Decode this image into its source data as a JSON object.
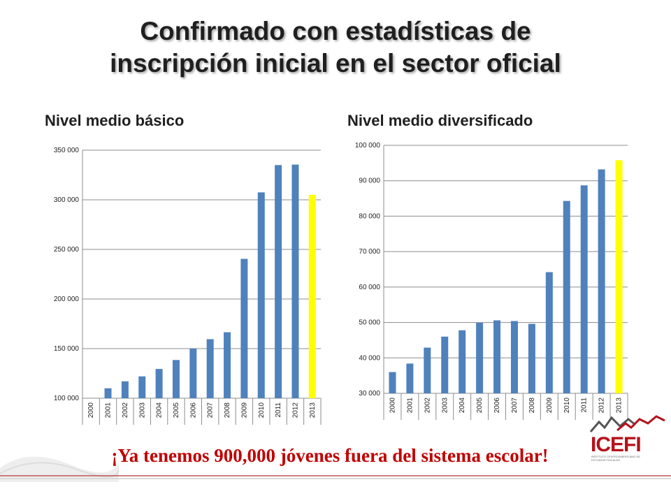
{
  "title": {
    "line1": "Confirmado con estadísticas de",
    "line2": "inscripción inicial en el sector oficial"
  },
  "footer_text": "¡Ya tenemos 900,000 jóvenes fuera del sistema escolar!",
  "logo": {
    "name": "ICEFI",
    "subtitle": "INSTITUTO CENTROAMERICANO DE ESTUDIOS FISCALES"
  },
  "colors": {
    "bar": "#4f81bd",
    "highlight": "#ffff00",
    "footer": "#c00000",
    "logo": "#b5121b"
  },
  "chart_data": [
    {
      "type": "bar",
      "title": "Nivel medio básico",
      "categories": [
        "2000",
        "2001",
        "2002",
        "2003",
        "2004",
        "2005",
        "2006",
        "2007",
        "2008",
        "2009",
        "2010",
        "2011",
        "2012",
        "2013"
      ],
      "values": [
        100000,
        110000,
        117000,
        122000,
        129500,
        138500,
        150000,
        159500,
        166500,
        240500,
        307500,
        335000,
        335500,
        305000
      ],
      "highlight_category": "2013",
      "ylim": [
        100000,
        350000
      ],
      "yticks": [
        100000,
        150000,
        200000,
        250000,
        300000,
        350000
      ],
      "ytick_labels": [
        "100 000",
        "150 000",
        "200 000",
        "250 000",
        "300 000",
        "350 000"
      ],
      "grid": true
    },
    {
      "type": "bar",
      "title": "Nivel medio diversificado",
      "categories": [
        "2000",
        "2001",
        "2002",
        "2003",
        "2004",
        "2005",
        "2006",
        "2007",
        "2008",
        "2009",
        "2010",
        "2011",
        "2012",
        "2013"
      ],
      "values": [
        36000,
        38400,
        42900,
        46000,
        47800,
        49900,
        50600,
        50400,
        49600,
        64200,
        84300,
        88700,
        93200,
        95800
      ],
      "highlight_category": "2013",
      "ylim": [
        30000,
        100000
      ],
      "yticks": [
        30000,
        40000,
        50000,
        60000,
        70000,
        80000,
        90000,
        100000
      ],
      "ytick_labels": [
        "30 000",
        "40 000",
        "50 000",
        "60 000",
        "70 000",
        "80 000",
        "90 000",
        "100 000"
      ],
      "grid": true
    }
  ]
}
